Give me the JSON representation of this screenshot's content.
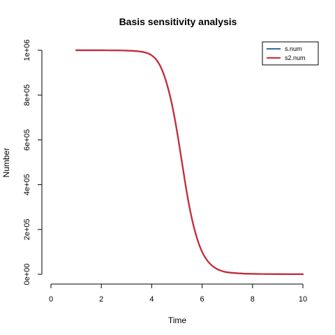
{
  "chart_data": {
    "type": "line",
    "title": "Basis sensitivity analysis",
    "xlabel": "Time",
    "ylabel": "Number",
    "xlim": [
      0,
      10
    ],
    "ylim": [
      0,
      1000000
    ],
    "x_ticks": [
      0,
      2,
      4,
      6,
      8,
      10
    ],
    "x_tick_labels": [
      "0",
      "2",
      "4",
      "6",
      "8",
      "10"
    ],
    "y_ticks": [
      0,
      200000,
      400000,
      600000,
      800000,
      1000000
    ],
    "y_tick_labels": [
      "0e+00",
      "2e+05",
      "4e+05",
      "6e+05",
      "8e+05",
      "1e+06"
    ],
    "legend_position": "top-right",
    "grid": false,
    "x": [
      1.0,
      1.5,
      2.0,
      2.5,
      3.0,
      3.5,
      3.8,
      4.0,
      4.2,
      4.4,
      4.6,
      4.8,
      5.0,
      5.2,
      5.4,
      5.6,
      5.8,
      6.0,
      6.2,
      6.4,
      6.6,
      6.8,
      7.0,
      7.5,
      8.0,
      8.5,
      9.0,
      9.5,
      10.0
    ],
    "series": [
      {
        "name": "s.num",
        "color": "#2e6da4",
        "values": [
          1000000,
          1000000,
          1000000,
          999500,
          998500,
          995000,
          988000,
          977000,
          955000,
          915000,
          850000,
          760000,
          640000,
          500000,
          360000,
          245000,
          160000,
          100000,
          62000,
          38000,
          23000,
          14000,
          9000,
          4000,
          2000,
          1200,
          800,
          500,
          400
        ]
      },
      {
        "name": "s2.num",
        "color": "#cc2b36",
        "values": [
          1000000,
          1000000,
          1000000,
          999500,
          998500,
          995000,
          988000,
          977000,
          955000,
          915000,
          850000,
          760000,
          640000,
          500000,
          360000,
          245000,
          160000,
          100000,
          62000,
          38000,
          23000,
          14000,
          9000,
          4000,
          2000,
          1200,
          800,
          500,
          400
        ]
      }
    ]
  }
}
